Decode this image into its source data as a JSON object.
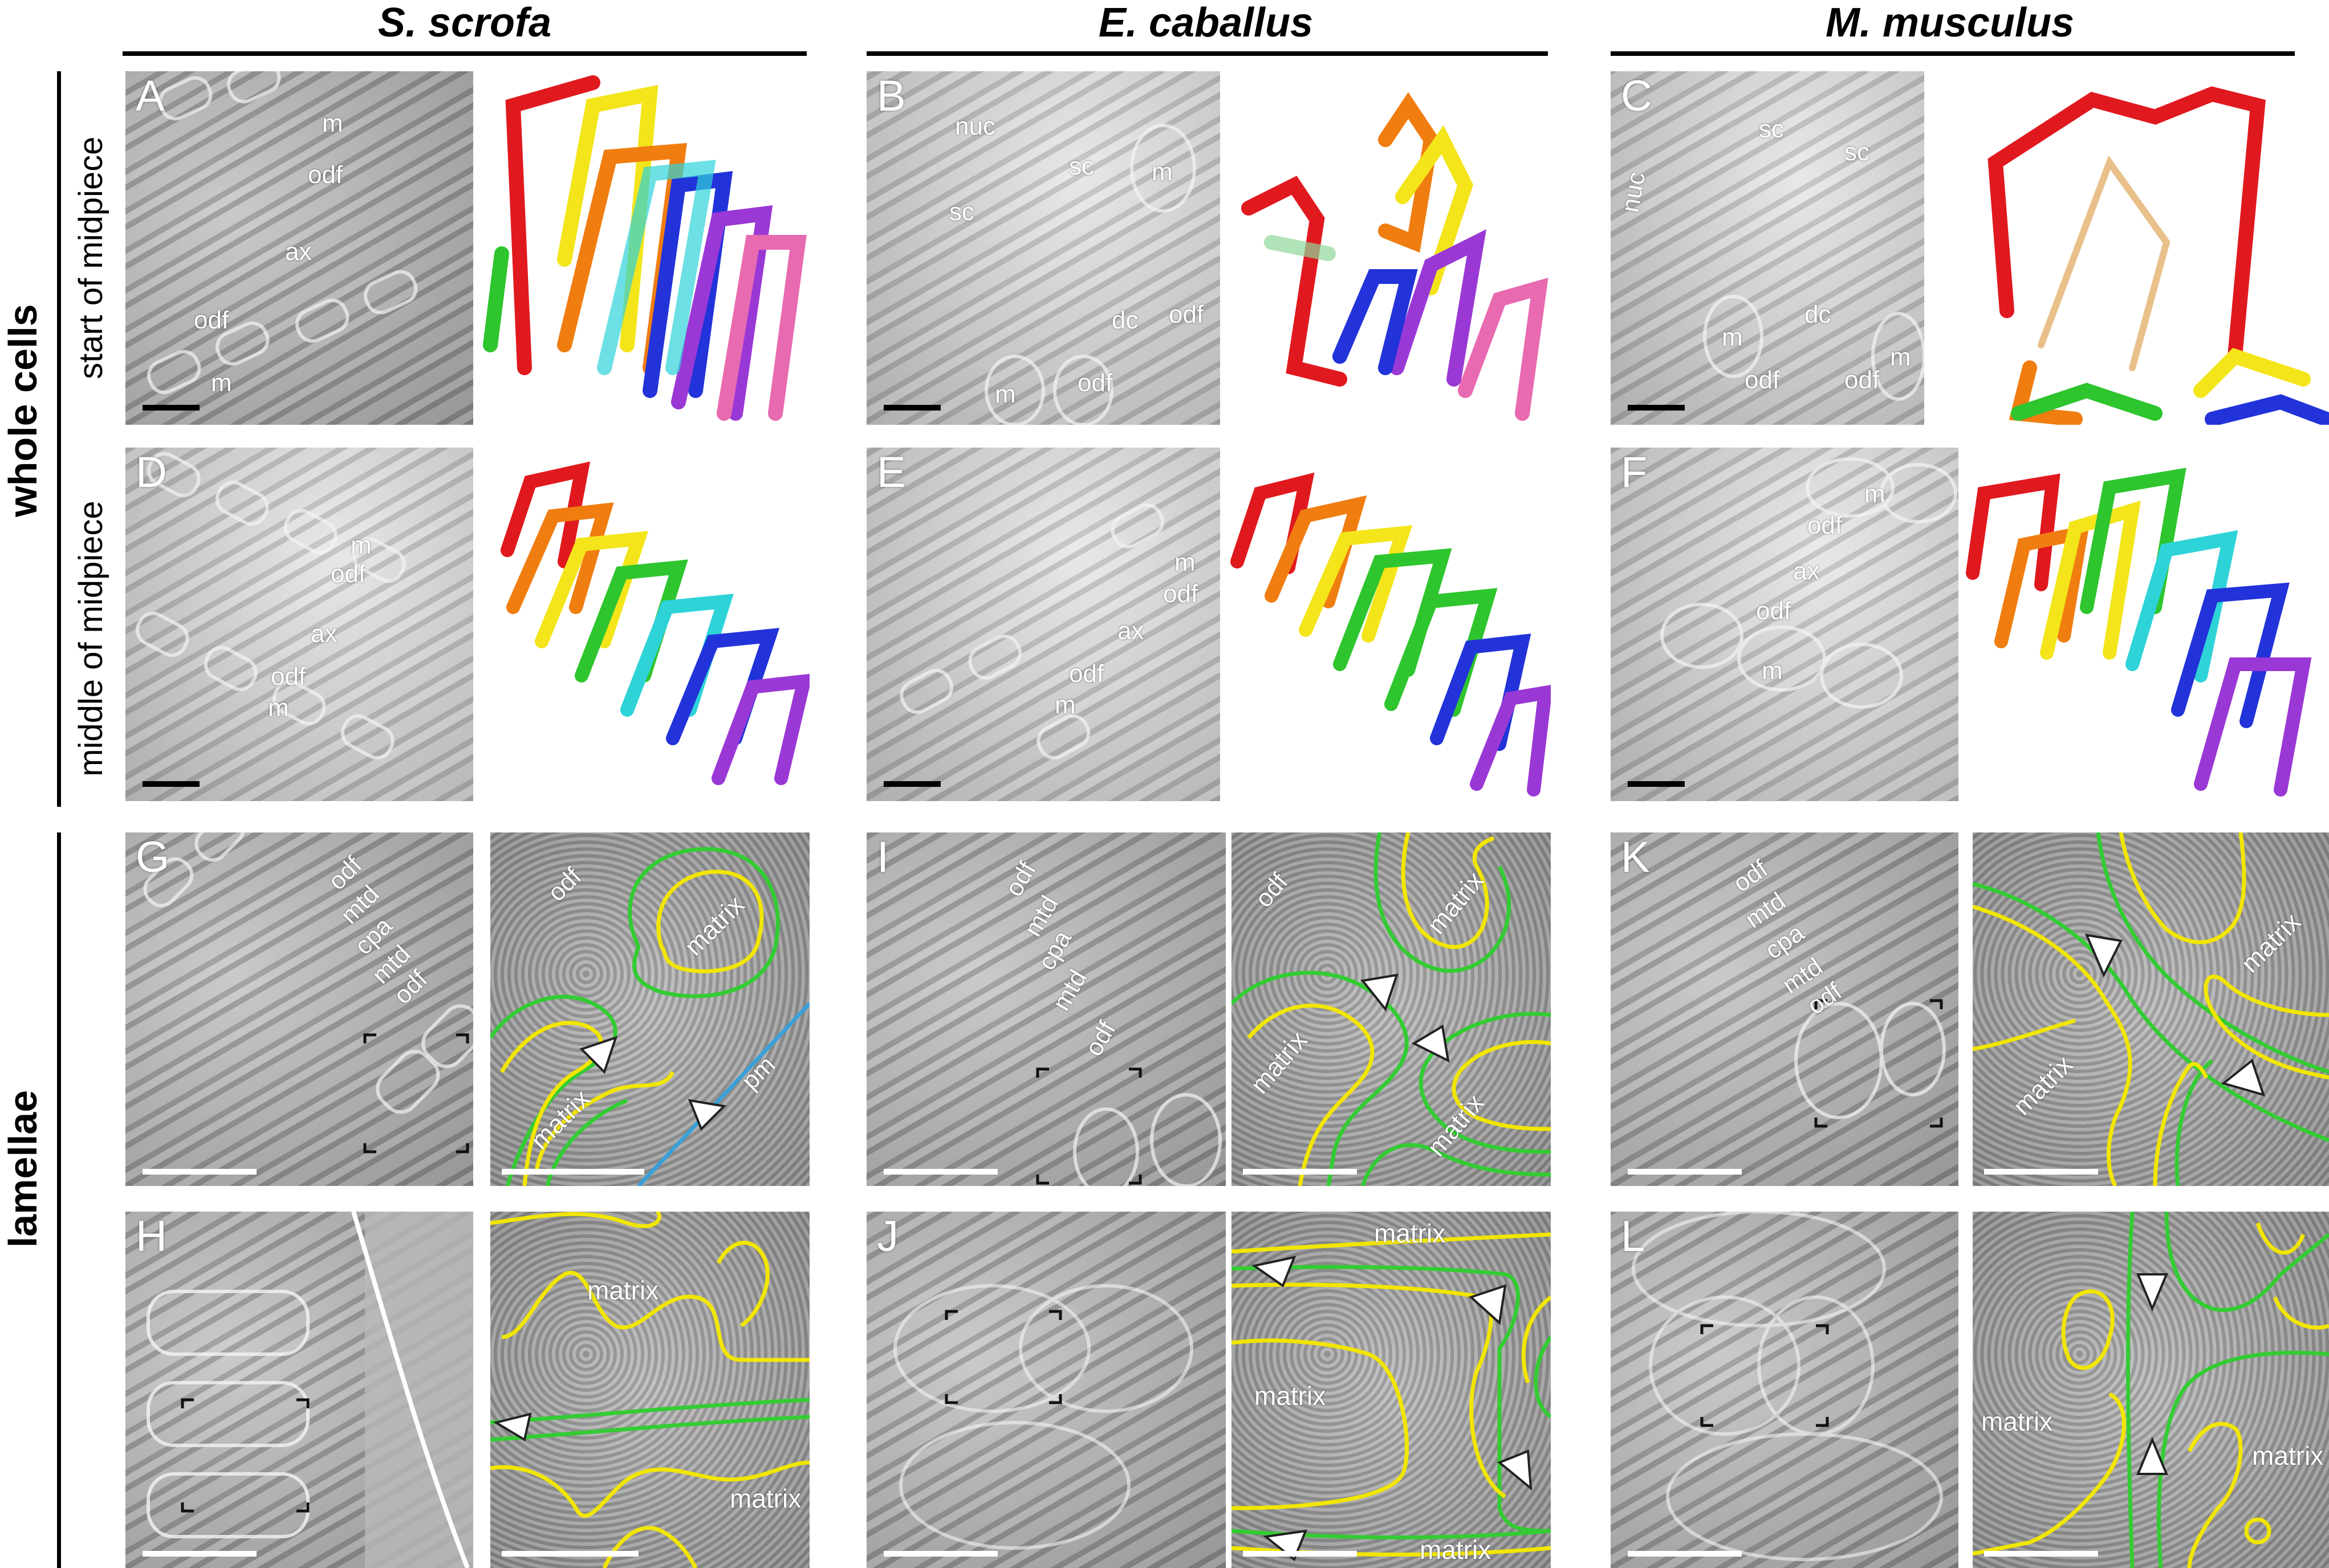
{
  "species": [
    "S. scrofa",
    "E. caballus",
    "M. musculus"
  ],
  "groups": {
    "whole_cells": "whole cells",
    "lamellae": "lamellae"
  },
  "rows": {
    "start": "start of midpiece",
    "middle": "middle of midpiece"
  },
  "panel_letters": [
    "A",
    "B",
    "C",
    "D",
    "E",
    "F",
    "G",
    "H",
    "I",
    "J",
    "K",
    "L"
  ],
  "labels": {
    "m": "m",
    "odf": "odf",
    "ax": "ax",
    "nuc": "nuc",
    "sc": "sc",
    "dc": "dc",
    "mtd": "mtd",
    "cpa": "cpa",
    "pm": "pm",
    "matrix": "matrix"
  },
  "colors": {
    "outer_membrane_trace": "#33cc33",
    "inner_membrane_trace": "#f2e600",
    "plasma_membrane_trace": "#3aa0d8",
    "segmentation": [
      "#e0191f",
      "#f07d10",
      "#f3e51a",
      "#2ec52e",
      "#2ed3d8",
      "#2233d9",
      "#9a38d6",
      "#e86ab0",
      "#8fd99a",
      "#e9c08a"
    ]
  }
}
